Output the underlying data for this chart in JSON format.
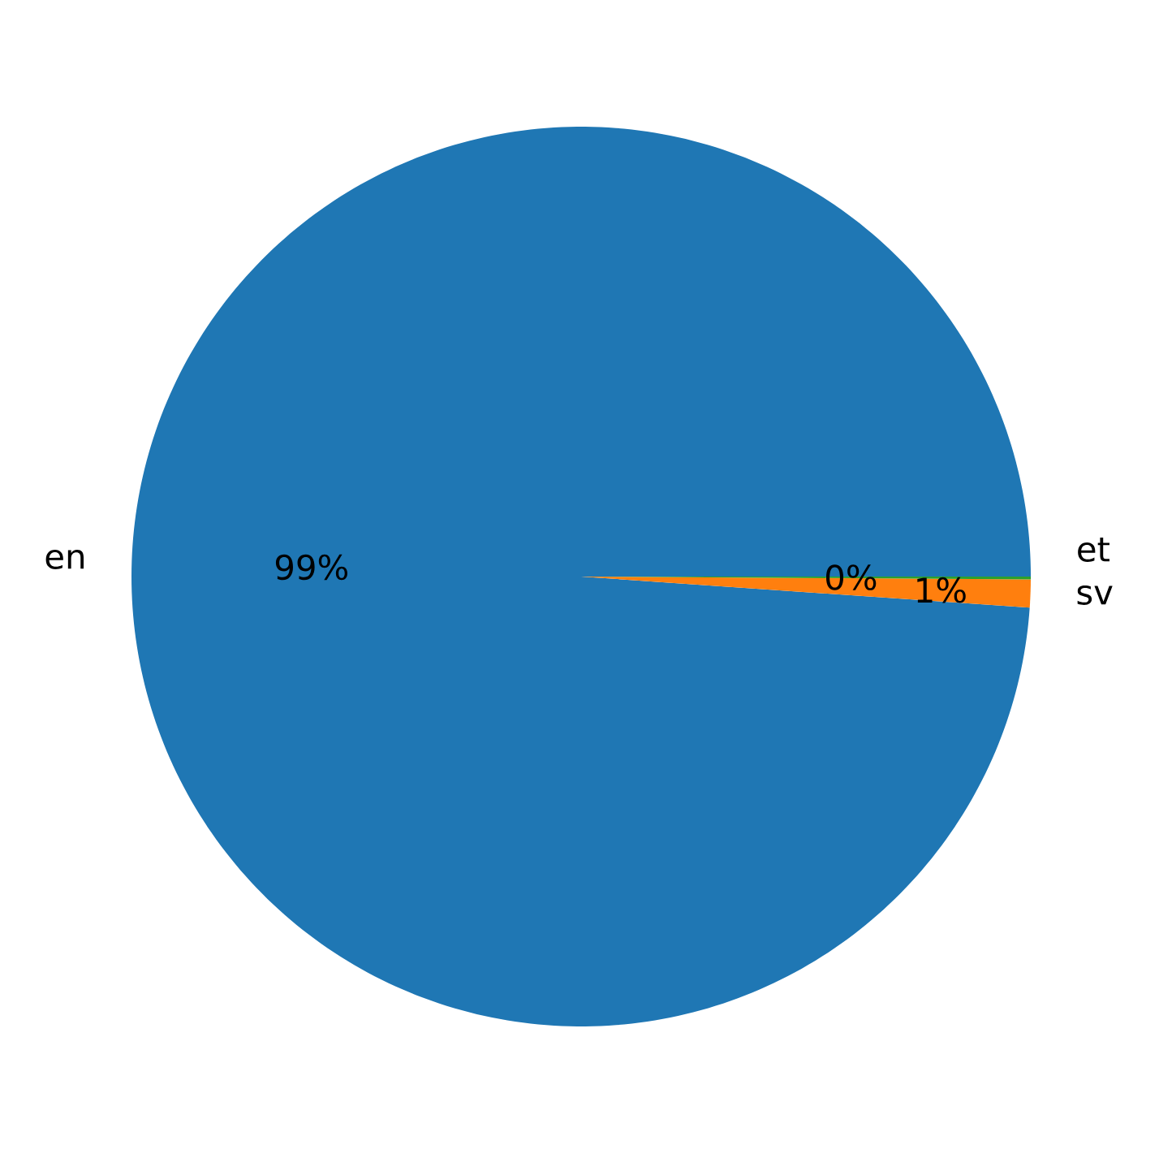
{
  "chart_data": {
    "type": "pie",
    "categories": [
      "en",
      "sv",
      "et"
    ],
    "values": [
      98.9,
      1.0,
      0.1
    ],
    "colors": [
      "#1f77b4",
      "#ff7f0e",
      "#2ca02c"
    ],
    "value_labels": [
      "99%",
      "1%",
      "0%"
    ]
  }
}
